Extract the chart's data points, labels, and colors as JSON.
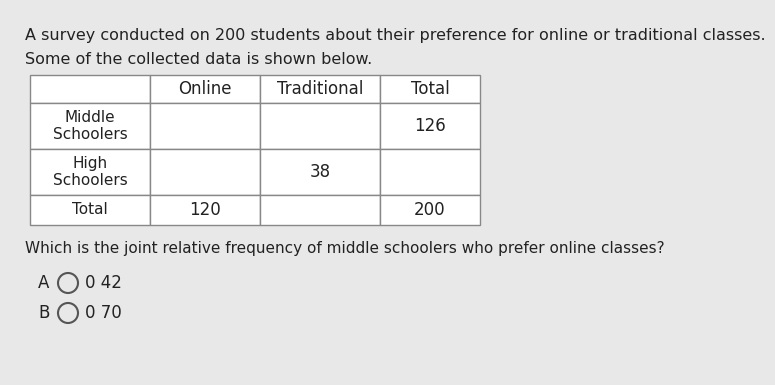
{
  "title_line1": "A survey conducted on 200 students about their preference for online or traditional classes.",
  "title_line2": "Some of the collected data is shown below.",
  "col_headers": [
    "",
    "Online",
    "Traditional",
    "Total"
  ],
  "row_labels": [
    "Middle\nSchoolers",
    "High\nSchoolers",
    "Total"
  ],
  "table_data": [
    [
      "",
      "",
      "126"
    ],
    [
      "",
      "38",
      ""
    ],
    [
      "120",
      "",
      "200"
    ]
  ],
  "question": "Which is the joint relative frequency of middle schoolers who prefer online classes?",
  "bg_color": "#e8e8e8",
  "cell_color": "#ffffff",
  "border_color": "#888888",
  "text_color": "#222222",
  "title_fontsize": 11.5,
  "table_fontsize": 12,
  "question_fontsize": 11,
  "option_fontsize": 12
}
